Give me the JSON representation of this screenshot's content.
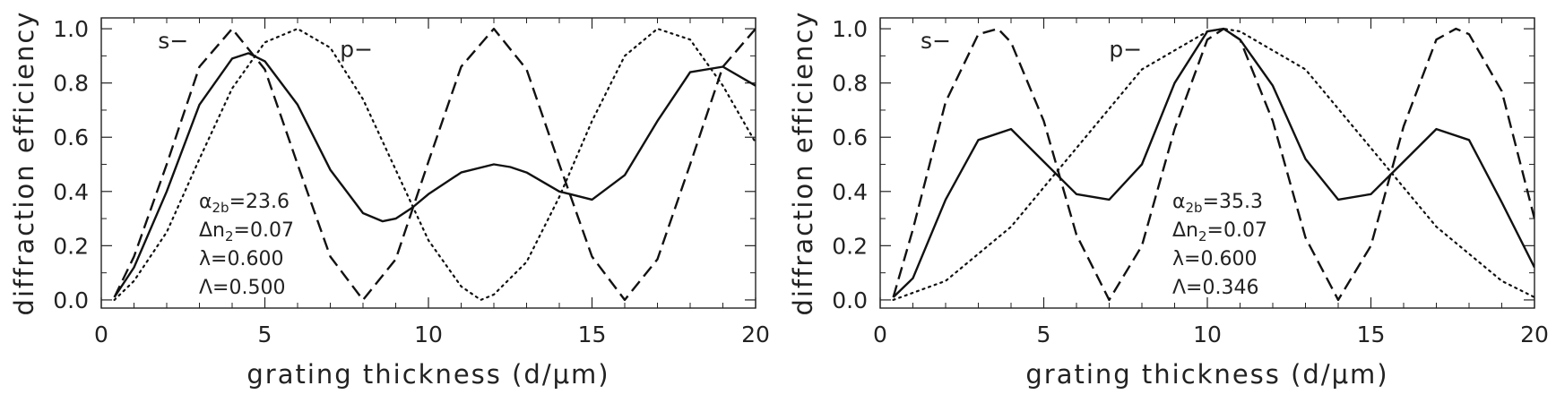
{
  "chart_data": [
    {
      "type": "line",
      "xlabel": "grating thickness (d/μm)",
      "ylabel": "diffraction efficiency",
      "xlim": [
        0,
        20
      ],
      "ylim": [
        -0.03,
        1.04
      ],
      "xticks": [
        0,
        5,
        10,
        15,
        20
      ],
      "yticks": [
        0.0,
        0.2,
        0.4,
        0.6,
        0.8,
        1.0
      ],
      "xtick_labels": [
        "0",
        "5",
        "10",
        "15",
        "20"
      ],
      "ytick_labels": [
        "0.0",
        "0.2",
        "0.4",
        "0.6",
        "0.8",
        "1.0"
      ],
      "curve_labels": [
        {
          "text": "s−",
          "x": 2.2,
          "y": 0.96
        },
        {
          "text": "p−",
          "x": 7.8,
          "y": 0.93
        }
      ],
      "annotations": [
        "α2b=23.6",
        "Δn2=0.07",
        "λ=0.600",
        "Λ=0.500"
      ],
      "grid": false,
      "series": [
        {
          "style": "dashed",
          "x": [
            0.4,
            1.0,
            2.0,
            3.0,
            4.0,
            5.0,
            6.0,
            7.0,
            8.0,
            9.0,
            10.0,
            11.0,
            12.0,
            13.0,
            14.0,
            15.0,
            16.0,
            17.0,
            18.0,
            19.0,
            20.0
          ],
          "y": [
            0.01,
            0.16,
            0.5,
            0.86,
            1.0,
            0.85,
            0.5,
            0.16,
            0.0,
            0.15,
            0.51,
            0.86,
            1.0,
            0.85,
            0.5,
            0.16,
            0.0,
            0.15,
            0.5,
            0.86,
            1.0
          ]
        },
        {
          "style": "dotted",
          "x": [
            0.4,
            1.0,
            2.0,
            3.0,
            4.0,
            5.0,
            6.0,
            7.0,
            8.0,
            9.0,
            10.0,
            11.0,
            11.6,
            12.0,
            13.0,
            14.0,
            15.0,
            16.0,
            17.0,
            18.0,
            19.0,
            20.0
          ],
          "y": [
            0.0,
            0.07,
            0.25,
            0.52,
            0.78,
            0.95,
            1.0,
            0.93,
            0.74,
            0.48,
            0.22,
            0.05,
            0.0,
            0.02,
            0.14,
            0.38,
            0.66,
            0.9,
            1.0,
            0.96,
            0.79,
            0.58
          ]
        },
        {
          "style": "solid",
          "x": [
            0.4,
            1.0,
            2.0,
            3.0,
            4.0,
            4.5,
            5.0,
            6.0,
            7.0,
            8.0,
            8.6,
            9.0,
            9.5,
            10.0,
            11.0,
            12.0,
            12.5,
            13.0,
            14.0,
            15.0,
            16.0,
            17.0,
            18.0,
            19.0,
            20.0
          ],
          "y": [
            0.01,
            0.12,
            0.4,
            0.72,
            0.89,
            0.91,
            0.88,
            0.72,
            0.48,
            0.32,
            0.29,
            0.3,
            0.34,
            0.39,
            0.47,
            0.5,
            0.49,
            0.47,
            0.4,
            0.37,
            0.46,
            0.66,
            0.84,
            0.86,
            0.79
          ]
        }
      ]
    },
    {
      "type": "line",
      "xlabel": "grating thickness (d/μm)",
      "ylabel": "diffraction efficiency",
      "xlim": [
        0,
        20
      ],
      "ylim": [
        -0.03,
        1.04
      ],
      "xticks": [
        0,
        5,
        10,
        15,
        20
      ],
      "yticks": [
        0.0,
        0.2,
        0.4,
        0.6,
        0.8,
        1.0
      ],
      "xtick_labels": [
        "0",
        "5",
        "10",
        "15",
        "20"
      ],
      "ytick_labels": [
        "0.0",
        "0.2",
        "0.4",
        "0.6",
        "0.8",
        "1.0"
      ],
      "curve_labels": [
        {
          "text": "s−",
          "x": 1.7,
          "y": 0.96
        },
        {
          "text": "p−",
          "x": 7.5,
          "y": 0.93
        }
      ],
      "annotations": [
        "α2b=35.3",
        "Δn2=0.07",
        "λ=0.600",
        "Λ=0.346"
      ],
      "grid": false,
      "series": [
        {
          "style": "dashed",
          "x": [
            0.4,
            1.0,
            2.0,
            3.0,
            3.6,
            4.0,
            5.0,
            6.0,
            7.0,
            8.0,
            9.0,
            10.0,
            10.5,
            11.0,
            12.0,
            13.0,
            14.0,
            15.0,
            16.0,
            17.0,
            17.6,
            18.0,
            19.0,
            20.0
          ],
          "y": [
            0.01,
            0.26,
            0.73,
            0.98,
            1.0,
            0.95,
            0.66,
            0.24,
            0.0,
            0.2,
            0.63,
            0.96,
            1.0,
            0.96,
            0.66,
            0.23,
            0.0,
            0.2,
            0.64,
            0.96,
            1.0,
            0.98,
            0.77,
            0.3
          ]
        },
        {
          "style": "dotted",
          "x": [
            0.4,
            2.0,
            4.0,
            6.0,
            8.0,
            10.0,
            10.5,
            11.0,
            13.0,
            15.0,
            17.0,
            19.0,
            20.0
          ],
          "y": [
            0.0,
            0.07,
            0.27,
            0.56,
            0.85,
            0.99,
            1.0,
            0.99,
            0.85,
            0.56,
            0.27,
            0.07,
            0.01
          ]
        },
        {
          "style": "solid",
          "x": [
            0.4,
            1.0,
            2.0,
            3.0,
            4.0,
            5.0,
            6.0,
            7.0,
            8.0,
            9.0,
            10.0,
            10.5,
            11.0,
            12.0,
            13.0,
            14.0,
            15.0,
            16.0,
            17.0,
            18.0,
            19.0,
            20.0
          ],
          "y": [
            0.01,
            0.08,
            0.37,
            0.59,
            0.63,
            0.51,
            0.39,
            0.37,
            0.5,
            0.8,
            0.99,
            1.0,
            0.96,
            0.79,
            0.52,
            0.37,
            0.39,
            0.51,
            0.63,
            0.59,
            0.36,
            0.12
          ]
        }
      ]
    }
  ]
}
